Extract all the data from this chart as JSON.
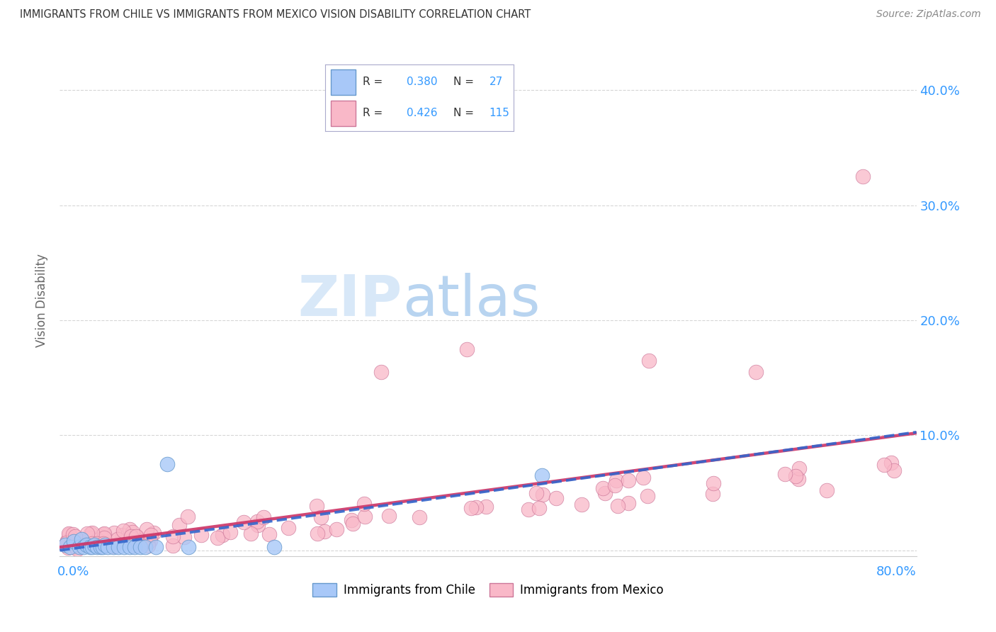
{
  "title": "IMMIGRANTS FROM CHILE VS IMMIGRANTS FROM MEXICO VISION DISABILITY CORRELATION CHART",
  "source": "Source: ZipAtlas.com",
  "ylabel": "Vision Disability",
  "xlim": [
    0.0,
    0.8
  ],
  "ylim": [
    -0.005,
    0.44
  ],
  "chile_color": "#a8c8f8",
  "chile_edge": "#6699cc",
  "mexico_color": "#f9b8c8",
  "mexico_edge": "#cc7799",
  "trendline_chile_color": "#3366cc",
  "trendline_mexico_color": "#cc3366",
  "watermark_color": "#d8e8f8",
  "grid_color": "#cccccc",
  "ytick_color": "#3399ff",
  "title_color": "#333333",
  "source_color": "#888888",
  "ylabel_color": "#666666",
  "legend_border_color": "#aaaacc",
  "blue_text": "#3399ff",
  "black_text": "#333333"
}
